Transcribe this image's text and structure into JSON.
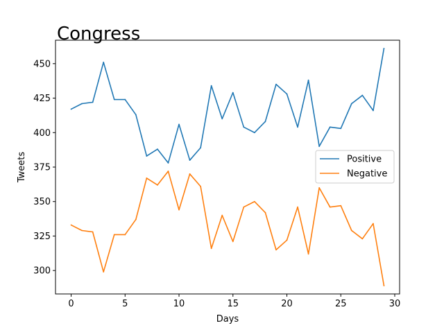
{
  "chart_data": {
    "type": "line",
    "title": "Congress",
    "xlabel": "Days",
    "ylabel": "Tweets",
    "xlim": [
      -1.45,
      30.45
    ],
    "ylim": [
      283,
      467
    ],
    "xticks": [
      0,
      5,
      10,
      15,
      20,
      25,
      30
    ],
    "yticks": [
      300,
      325,
      350,
      375,
      400,
      425,
      450
    ],
    "grid": false,
    "legend_position": "center-right",
    "x": [
      0,
      1,
      2,
      3,
      4,
      5,
      6,
      7,
      8,
      9,
      10,
      11,
      12,
      13,
      14,
      15,
      16,
      17,
      18,
      19,
      20,
      21,
      22,
      23,
      24,
      25,
      26,
      27,
      28,
      29
    ],
    "series": [
      {
        "name": "Positive",
        "color": "#1f77b4",
        "values": [
          417,
          421,
          422,
          451,
          424,
          424,
          413,
          383,
          388,
          378,
          406,
          380,
          389,
          434,
          410,
          429,
          404,
          400,
          408,
          435,
          428,
          404,
          438,
          390,
          404,
          403,
          421,
          427,
          416,
          461
        ]
      },
      {
        "name": "Negative",
        "color": "#ff7f0e",
        "values": [
          333,
          329,
          328,
          299,
          326,
          326,
          337,
          367,
          362,
          372,
          344,
          370,
          361,
          316,
          340,
          321,
          346,
          350,
          342,
          315,
          322,
          346,
          312,
          360,
          346,
          347,
          329,
          323,
          334,
          289
        ]
      }
    ]
  }
}
